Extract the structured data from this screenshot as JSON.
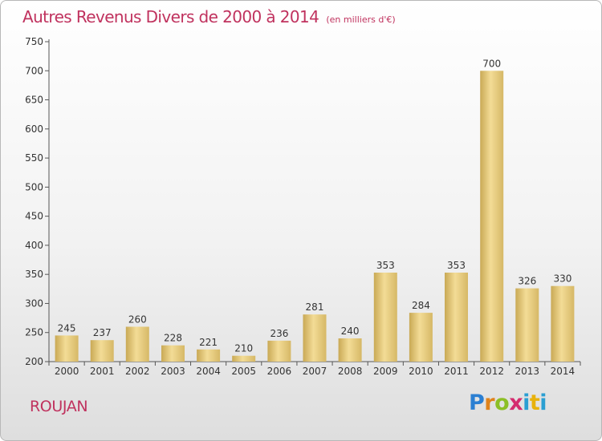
{
  "chart_data": {
    "type": "bar",
    "title": "Autres Revenus Divers de 2000 à 2014",
    "subtitle": "(en milliers d'€)",
    "categories": [
      "2000",
      "2001",
      "2002",
      "2003",
      "2004",
      "2005",
      "2006",
      "2007",
      "2008",
      "2009",
      "2010",
      "2011",
      "2012",
      "2013",
      "2014"
    ],
    "values": [
      245,
      237,
      260,
      228,
      221,
      210,
      236,
      281,
      240,
      353,
      284,
      353,
      700,
      326,
      330
    ],
    "ylim": [
      200,
      750
    ],
    "yticks": [
      200,
      250,
      300,
      350,
      400,
      450,
      500,
      550,
      600,
      650,
      700,
      750
    ],
    "grid": false,
    "bar_color": "#e6c877",
    "title_color": "#c0325e"
  },
  "footer": {
    "place": "ROUJAN"
  },
  "logo": {
    "p": "P",
    "r": "r",
    "o": "o",
    "x": "x",
    "i1": "i",
    "t": "t",
    "i2": "i"
  }
}
